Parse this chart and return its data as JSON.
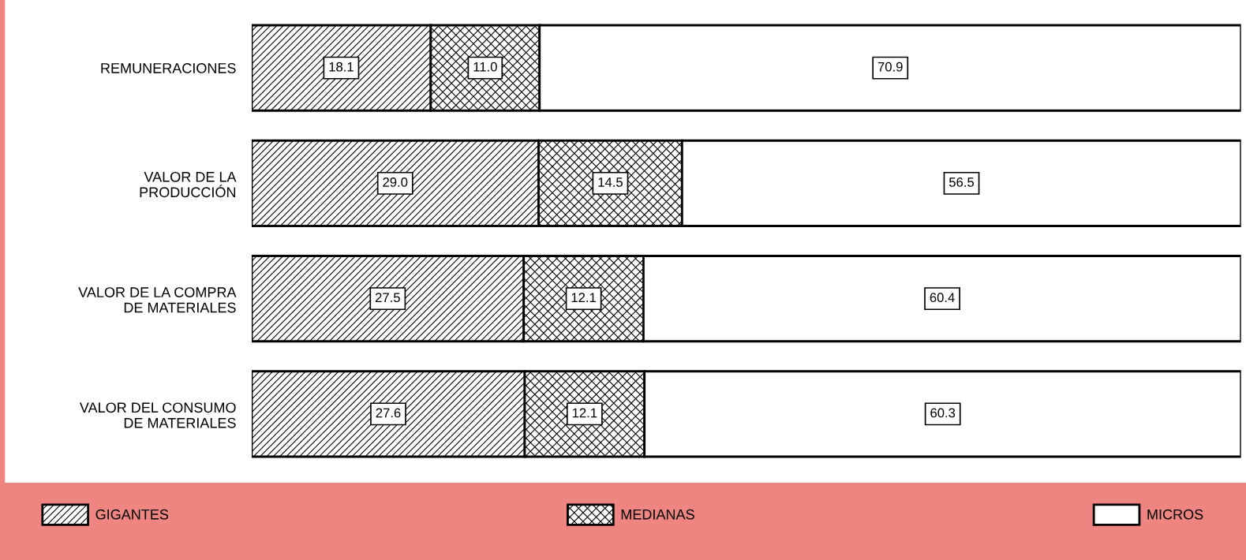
{
  "chart_data": {
    "type": "bar",
    "orientation": "horizontal",
    "stacked": true,
    "categories": [
      "REMUNERACIONES",
      "VALOR DE LA\nPRODUCCIÓN",
      "VALOR DE LA COMPRA\nDE MATERIALES",
      "VALOR DEL CONSUMO\nDE MATERIALES"
    ],
    "series": [
      {
        "name": "GIGANTES",
        "color": "#000000",
        "values": [
          18.1,
          29.0,
          27.5,
          27.6
        ],
        "value_labels": [
          "18.1",
          "29.0",
          "27.5",
          "27.6"
        ]
      },
      {
        "name": "MEDIANAS",
        "color": "#000000",
        "values": [
          11.0,
          14.5,
          12.1,
          12.1
        ],
        "value_labels": [
          "11.0",
          "14.5",
          "12.1",
          "12.1"
        ]
      },
      {
        "name": "MICROS",
        "color": "#ffffff",
        "values": [
          70.9,
          56.5,
          60.4,
          60.3
        ],
        "value_labels": [
          "70.9",
          "56.5",
          "60.4",
          "60.3"
        ]
      }
    ],
    "tick_labels": "y",
    "grid": false,
    "legend": "bottom"
  }
}
